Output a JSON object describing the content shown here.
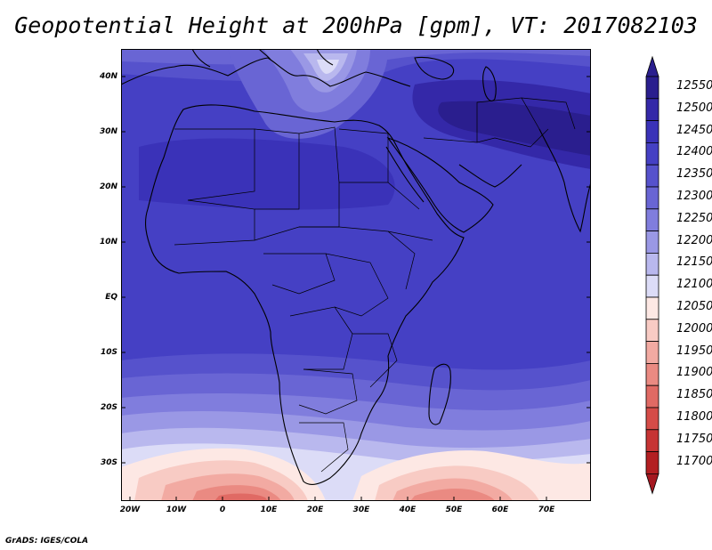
{
  "title": "Geopotential Height at 200hPa [gpm], VT: 2017082103",
  "credit": "GrADS: IGES/COLA",
  "lat_labels": [
    "40N",
    "30N",
    "20N",
    "10N",
    "EQ",
    "10S",
    "20S",
    "30S"
  ],
  "lon_labels": [
    "20W",
    "10W",
    "0",
    "10E",
    "20E",
    "30E",
    "40E",
    "50E",
    "60E",
    "70E"
  ],
  "legend": {
    "levels": [
      12550,
      12500,
      12450,
      12400,
      12350,
      12300,
      12250,
      12200,
      12150,
      12100,
      12050,
      12000,
      11950,
      11900,
      11850,
      11800,
      11750,
      11700
    ],
    "colors": [
      "#2a1e8e",
      "#3428a8",
      "#3a32b8",
      "#4540c4",
      "#5652cc",
      "#6965d4",
      "#807ddd",
      "#9a98e5",
      "#b9b8ee",
      "#dcdcf7",
      "#fde8e4",
      "#f8cbc4",
      "#f2aaa2",
      "#ea8a82",
      "#e06a64",
      "#d54c48",
      "#c63434",
      "#b31f22"
    ],
    "max_color": "#2a1e8e",
    "min_color": "#a51820"
  }
}
